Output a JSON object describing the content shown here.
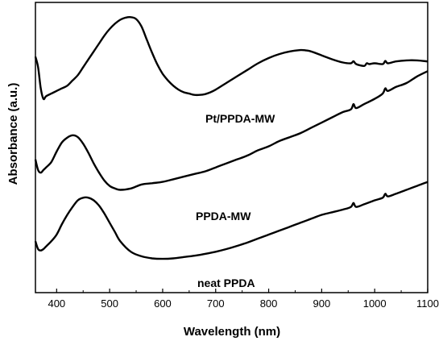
{
  "chart_data": {
    "type": "line",
    "xlabel": "Wavelength (nm)",
    "ylabel": "Absorbance (a.u.)",
    "xlim": [
      360,
      1100
    ],
    "ylim": [
      0,
      100
    ],
    "x_ticks": [
      400,
      500,
      600,
      700,
      800,
      900,
      1000,
      1100
    ],
    "y_ticks_labeled": false,
    "grid": false,
    "series": [
      {
        "name": "Pt/PPDA-MW",
        "x": [
          360,
          365,
          370,
          375,
          380,
          390,
          400,
          410,
          420,
          430,
          440,
          450,
          460,
          470,
          480,
          490,
          500,
          510,
          520,
          530,
          540,
          550,
          560,
          570,
          580,
          590,
          600,
          610,
          620,
          630,
          640,
          650,
          660,
          670,
          680,
          690,
          700,
          720,
          740,
          760,
          780,
          800,
          820,
          840,
          860,
          870,
          880,
          900,
          920,
          940,
          955,
          960,
          965,
          980,
          985,
          990,
          1000,
          1015,
          1020,
          1025,
          1040,
          1060,
          1080,
          1100
        ],
        "y": [
          84,
          80,
          72,
          68,
          69,
          70,
          71,
          72,
          73,
          75,
          77,
          80,
          83,
          86,
          89,
          92,
          94.5,
          96.5,
          98,
          98.8,
          99,
          98.3,
          95.5,
          90.5,
          85.5,
          81,
          77.5,
          75,
          73,
          71.5,
          70.5,
          70,
          69.5,
          69.5,
          69.8,
          70.5,
          71.5,
          74,
          76.5,
          79,
          81.5,
          83.5,
          85,
          86,
          86.5,
          86.4,
          86,
          84.5,
          83,
          81.8,
          81.5,
          82.3,
          81.2,
          80.5,
          81.5,
          81.2,
          81.5,
          81.2,
          82.4,
          81.5,
          82.2,
          82.6,
          82.6,
          82.2
        ]
      },
      {
        "name": "PPDA-MW",
        "x": [
          360,
          365,
          370,
          375,
          380,
          390,
          400,
          410,
          420,
          430,
          440,
          450,
          460,
          470,
          480,
          490,
          500,
          510,
          520,
          540,
          560,
          580,
          600,
          620,
          640,
          660,
          680,
          700,
          720,
          740,
          760,
          780,
          800,
          820,
          840,
          860,
          880,
          900,
          920,
          940,
          955,
          960,
          965,
          980,
          1000,
          1015,
          1020,
          1025,
          1040,
          1060,
          1080,
          1100
        ],
        "y": [
          45,
          41,
          40,
          41,
          42,
          44,
          48,
          51.5,
          53.3,
          54.2,
          53.5,
          51,
          47.5,
          43.5,
          40,
          37,
          35,
          34,
          33.5,
          34,
          35.5,
          36,
          36.5,
          37.5,
          38.5,
          39.5,
          40.5,
          42,
          43.5,
          45,
          46.5,
          48.5,
          50,
          52,
          53.5,
          55,
          57,
          59,
          61,
          63,
          64,
          66,
          64.5,
          66,
          68,
          70,
          72,
          71,
          72.5,
          74,
          76.5,
          78.5
        ]
      },
      {
        "name": "neat PPDA",
        "x": [
          360,
          365,
          370,
          375,
          380,
          390,
          400,
          410,
          420,
          430,
          440,
          450,
          460,
          470,
          480,
          490,
          500,
          510,
          520,
          540,
          560,
          580,
          600,
          620,
          640,
          660,
          680,
          700,
          720,
          740,
          760,
          780,
          800,
          820,
          840,
          860,
          880,
          900,
          920,
          940,
          955,
          960,
          965,
          980,
          1000,
          1015,
          1020,
          1025,
          1040,
          1060,
          1080,
          1100
        ],
        "y": [
          14,
          11,
          10.5,
          11,
          12,
          14,
          16.5,
          20.5,
          24,
          27,
          29.5,
          30.5,
          30.5,
          29.5,
          27.5,
          24.5,
          21,
          17.5,
          14,
          10,
          8.3,
          7.5,
          7.3,
          7.5,
          8,
          8.5,
          9.2,
          10,
          11,
          12.2,
          13.5,
          15,
          16.5,
          18,
          19.5,
          21,
          22.5,
          24,
          25,
          26,
          27,
          28.5,
          27,
          28,
          29.5,
          30.5,
          32,
          31,
          32,
          33.5,
          35,
          36.5
        ]
      }
    ]
  }
}
